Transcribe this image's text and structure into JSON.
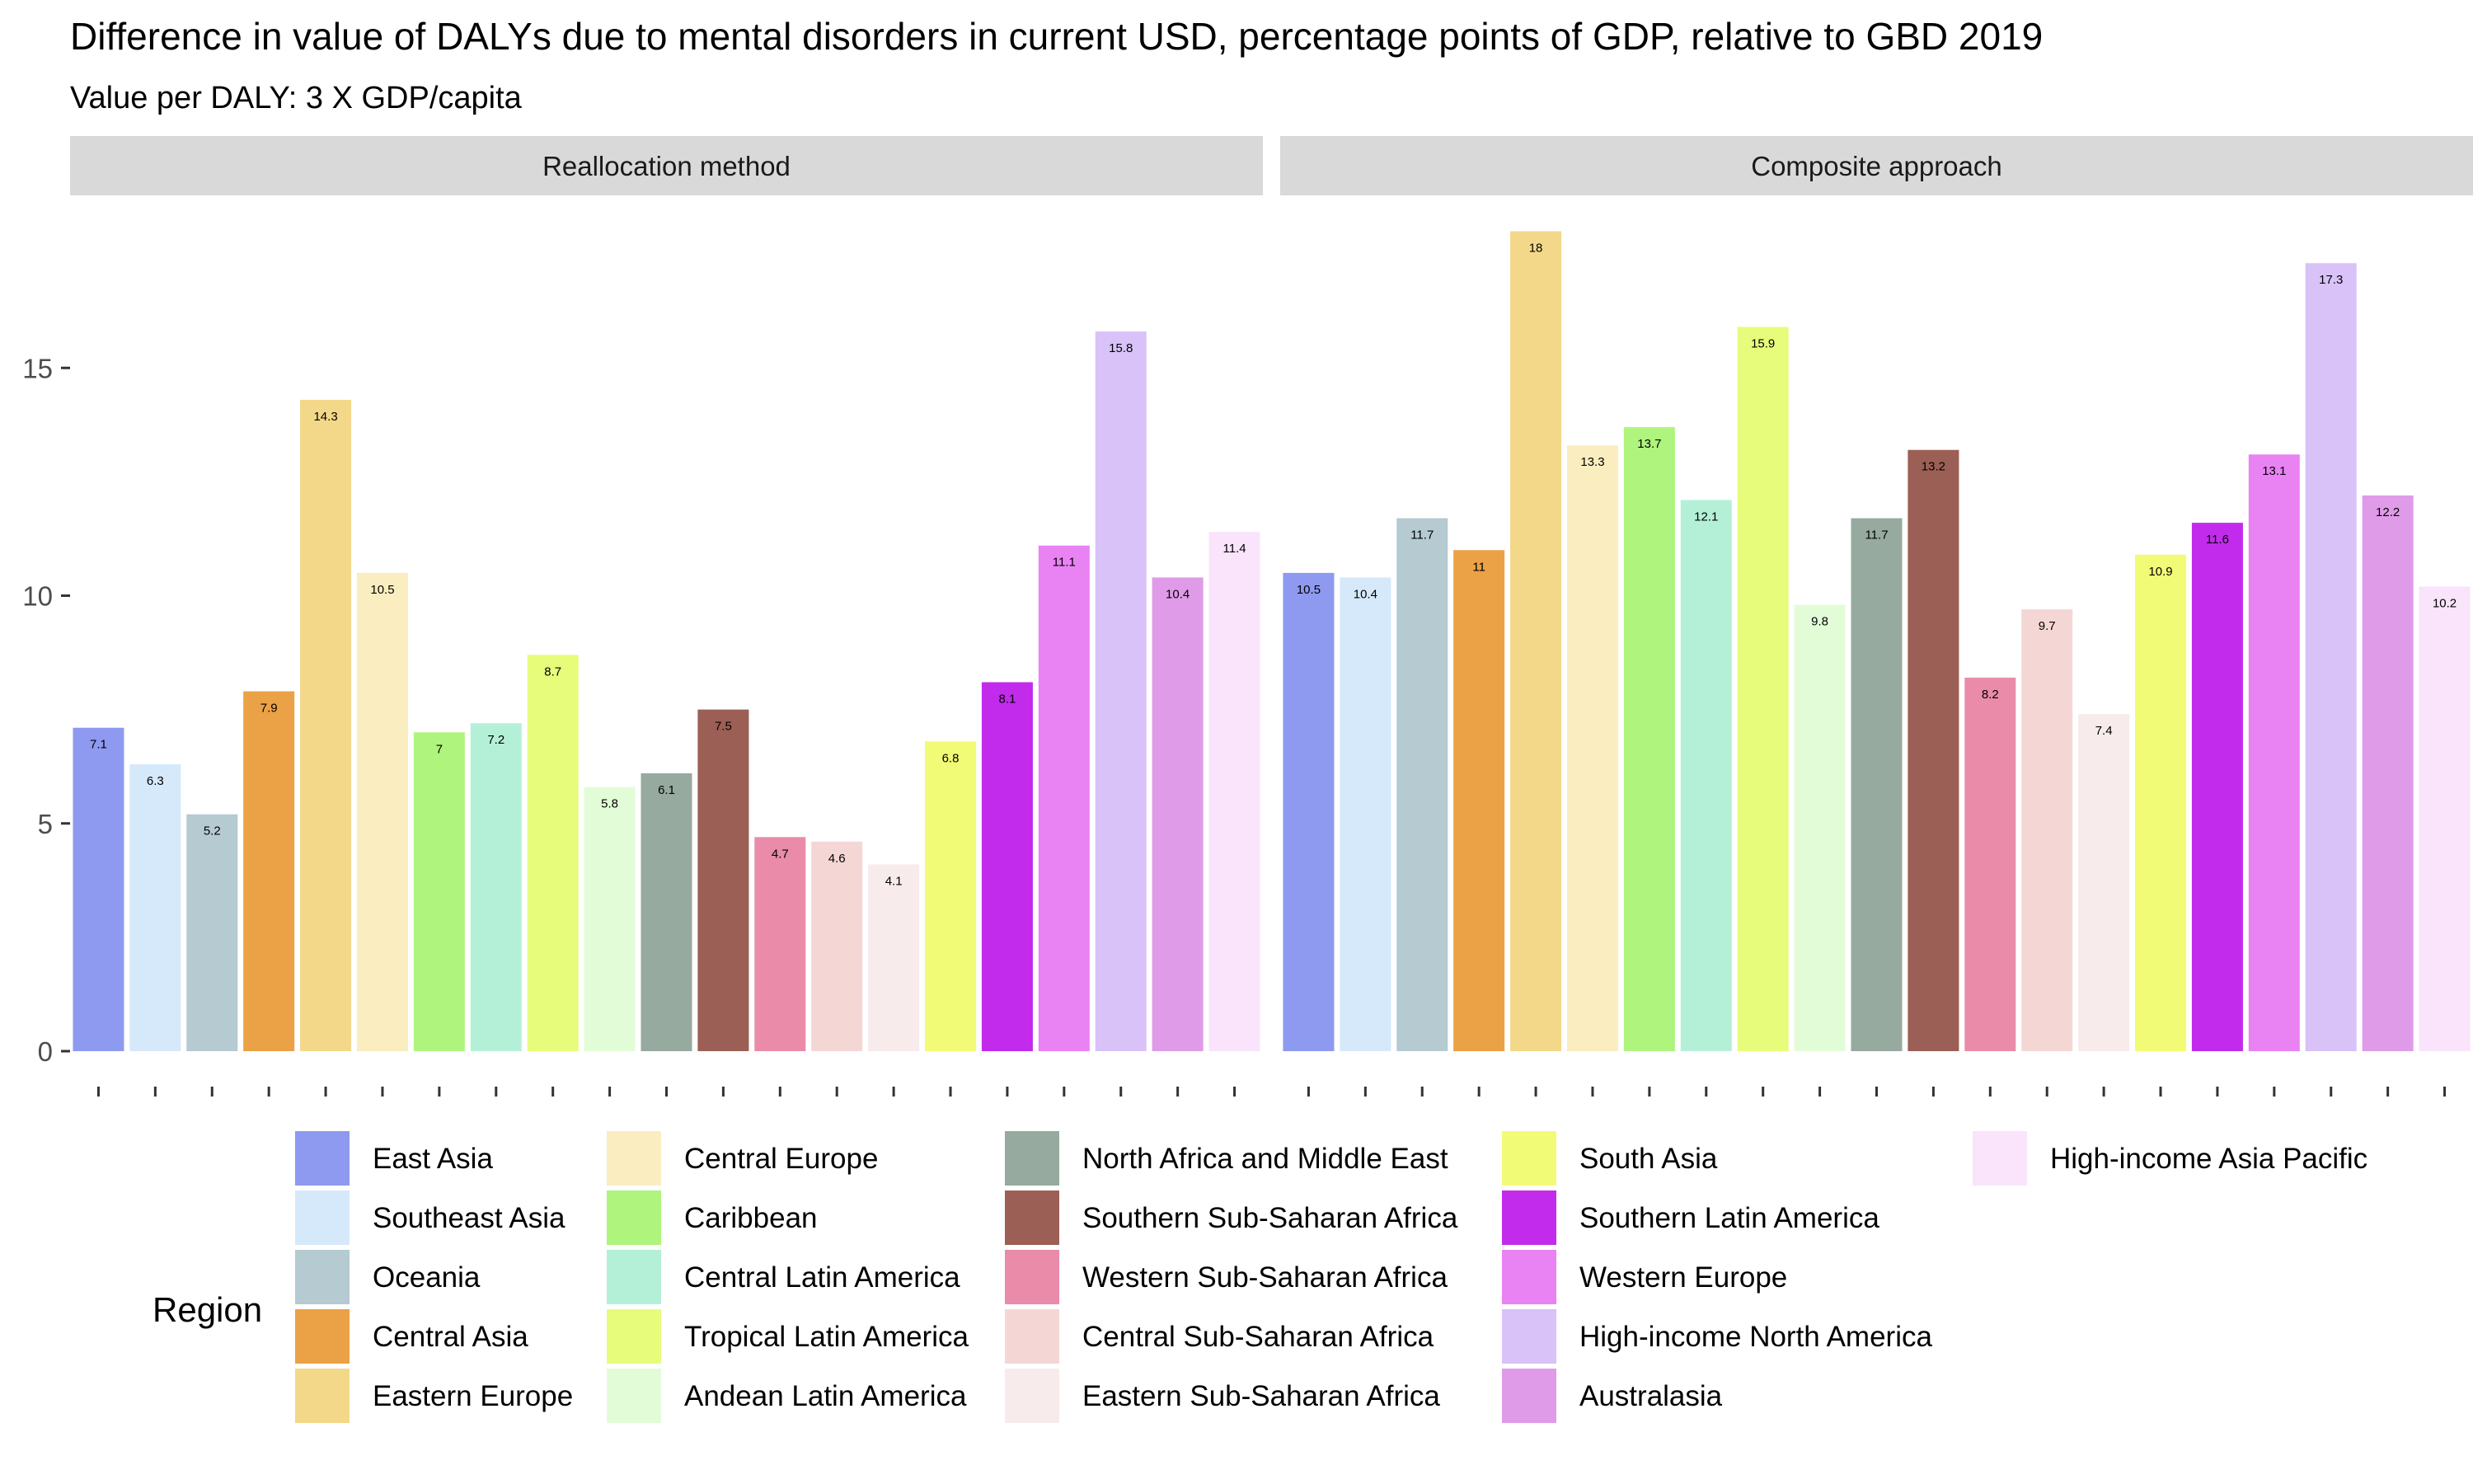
{
  "chart_data": {
    "type": "bar",
    "title": "Difference in value of DALYs due to mental disorders in current USD, percentage points of GDP, relative to GBD 2019",
    "subtitle": "Value per DALY: 3 X GDP/capita",
    "xlabel": "",
    "ylabel": "",
    "ylim": [
      0,
      18.1
    ],
    "y_ticks": [
      0,
      5,
      10,
      15
    ],
    "grid": false,
    "legend_position": "bottom",
    "legend_title": "Region",
    "categories": [
      "East Asia",
      "Southeast Asia",
      "Oceania",
      "Central Asia",
      "Eastern Europe",
      "Central Europe",
      "Caribbean",
      "Central Latin America",
      "Tropical Latin America",
      "Andean Latin America",
      "North Africa and Middle East",
      "Southern Sub-Saharan Africa",
      "Western Sub-Saharan Africa",
      "Central Sub-Saharan Africa",
      "Eastern Sub-Saharan Africa",
      "South Asia",
      "Southern Latin America",
      "Western Europe",
      "High-income North America",
      "Australasia",
      "High-income Asia Pacific"
    ],
    "colors": [
      "#8e99f0",
      "#d6e9fa",
      "#b5cad1",
      "#eba145",
      "#f3d889",
      "#faedc0",
      "#aef47d",
      "#b4f0d8",
      "#e6fc7a",
      "#e3fcd8",
      "#96aa9f",
      "#9c5f55",
      "#e98ba9",
      "#f4d7d5",
      "#f7ebec",
      "#f2fb75",
      "#c22bec",
      "#e982f3",
      "#d8c2f8",
      "#df9be8",
      "#f9e4fb"
    ],
    "series": [
      {
        "panel": "Reallocation method",
        "values": [
          7.1,
          6.3,
          5.2,
          7.9,
          14.3,
          10.5,
          7,
          7.2,
          8.7,
          5.8,
          6.1,
          7.5,
          4.7,
          4.6,
          4.1,
          6.8,
          8.1,
          11.1,
          15.8,
          10.4,
          11.4
        ]
      },
      {
        "panel": "Composite approach",
        "values": [
          10.5,
          10.4,
          11.7,
          11,
          18,
          13.3,
          13.7,
          12.1,
          15.9,
          9.8,
          11.7,
          13.2,
          8.2,
          9.7,
          7.4,
          10.9,
          11.6,
          13.1,
          17.3,
          12.2,
          10.2
        ]
      }
    ]
  }
}
